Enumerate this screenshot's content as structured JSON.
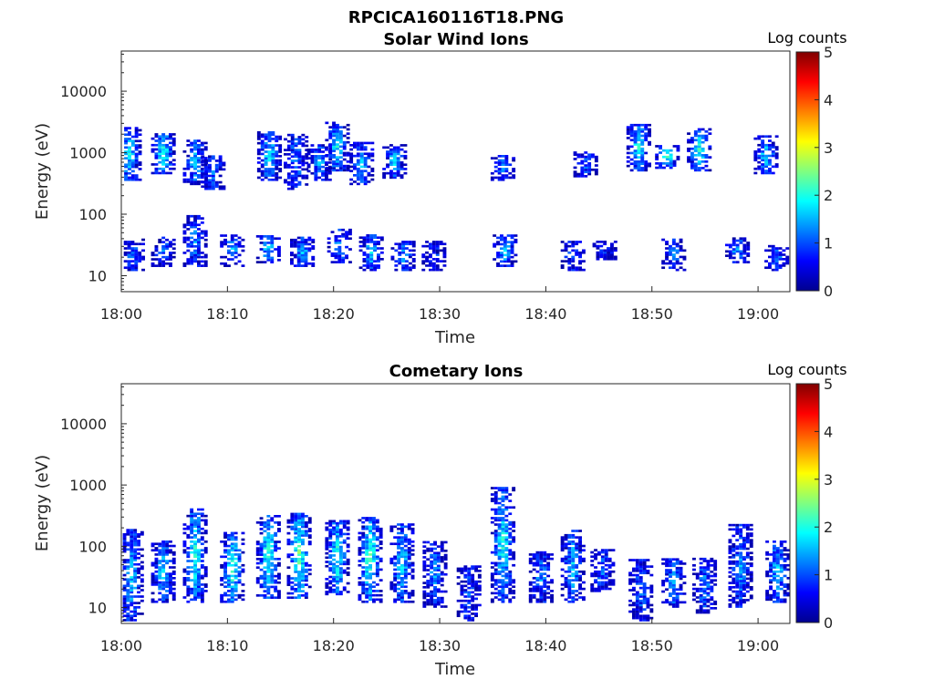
{
  "figure_title": "RPCICA160116T18.PNG",
  "chart_data": [
    {
      "type": "heatmap",
      "title": "Solar Wind Ions",
      "xlabel": "Time",
      "ylabel": "Energy (eV)",
      "x_ticks": [
        "18:00",
        "18:10",
        "18:20",
        "18:30",
        "18:40",
        "18:50",
        "19:00"
      ],
      "xlim": [
        "18:00",
        "19:03"
      ],
      "y_ticks": [
        "10",
        "100",
        "1000",
        "10000"
      ],
      "ylim": [
        5.5,
        45000
      ],
      "y_scale": "log",
      "colorbar": {
        "label": "Log counts",
        "ticks": [
          "0",
          "1",
          "2",
          "3",
          "4",
          "5"
        ],
        "range": [
          0,
          5
        ],
        "colormap": "jet"
      },
      "clusters": [
        {
          "t": 0.6,
          "emin": 350,
          "emax": 2500,
          "level": 1.8
        },
        {
          "t": 3.8,
          "emin": 450,
          "emax": 2000,
          "level": 2.0
        },
        {
          "t": 6.8,
          "emin": 300,
          "emax": 1600,
          "level": 1.6
        },
        {
          "t": 8.5,
          "emin": 250,
          "emax": 900,
          "level": 1.2
        },
        {
          "t": 13.8,
          "emin": 350,
          "emax": 2200,
          "level": 1.8
        },
        {
          "t": 16.3,
          "emin": 250,
          "emax": 1900,
          "level": 1.3
        },
        {
          "t": 18.5,
          "emin": 350,
          "emax": 1300,
          "level": 1.4
        },
        {
          "t": 20.2,
          "emin": 500,
          "emax": 3000,
          "level": 1.8
        },
        {
          "t": 22.5,
          "emin": 300,
          "emax": 1400,
          "level": 1.5
        },
        {
          "t": 25.6,
          "emin": 380,
          "emax": 1300,
          "level": 1.7
        },
        {
          "t": 35.8,
          "emin": 350,
          "emax": 900,
          "level": 1.2
        },
        {
          "t": 43.6,
          "emin": 400,
          "emax": 1000,
          "level": 1.1
        },
        {
          "t": 48.6,
          "emin": 500,
          "emax": 2800,
          "level": 1.9
        },
        {
          "t": 51.3,
          "emin": 550,
          "emax": 1300,
          "level": 2.0
        },
        {
          "t": 54.3,
          "emin": 500,
          "emax": 2400,
          "level": 2.1
        },
        {
          "t": 60.6,
          "emin": 450,
          "emax": 1800,
          "level": 1.7
        },
        {
          "t": 0.9,
          "emin": 12,
          "emax": 40,
          "level": 1.1
        },
        {
          "t": 3.8,
          "emin": 14,
          "emax": 40,
          "level": 1.1
        },
        {
          "t": 6.8,
          "emin": 14,
          "emax": 90,
          "level": 1.3
        },
        {
          "t": 10.3,
          "emin": 14,
          "emax": 45,
          "level": 1.4
        },
        {
          "t": 13.7,
          "emin": 16,
          "emax": 45,
          "level": 1.6
        },
        {
          "t": 16.9,
          "emin": 14,
          "emax": 40,
          "level": 1.5
        },
        {
          "t": 20.4,
          "emin": 16,
          "emax": 55,
          "level": 1.4
        },
        {
          "t": 23.4,
          "emin": 12,
          "emax": 45,
          "level": 1.6
        },
        {
          "t": 26.4,
          "emin": 12,
          "emax": 35,
          "level": 1.3
        },
        {
          "t": 29.3,
          "emin": 12,
          "emax": 35,
          "level": 0.8
        },
        {
          "t": 36.0,
          "emin": 14,
          "emax": 45,
          "level": 1.7
        },
        {
          "t": 42.4,
          "emin": 12,
          "emax": 35,
          "level": 1.0
        },
        {
          "t": 45.4,
          "emin": 18,
          "emax": 35,
          "level": 0.8
        },
        {
          "t": 51.9,
          "emin": 12,
          "emax": 40,
          "level": 1.2
        },
        {
          "t": 57.9,
          "emin": 16,
          "emax": 40,
          "level": 1.4
        },
        {
          "t": 61.6,
          "emin": 12,
          "emax": 30,
          "level": 1.1
        }
      ]
    },
    {
      "type": "heatmap",
      "title": "Cometary Ions",
      "xlabel": "Time",
      "ylabel": "Energy (eV)",
      "x_ticks": [
        "18:00",
        "18:10",
        "18:20",
        "18:30",
        "18:40",
        "18:50",
        "19:00"
      ],
      "xlim": [
        "18:00",
        "19:03"
      ],
      "y_ticks": [
        "10",
        "100",
        "1000",
        "10000"
      ],
      "ylim": [
        5.5,
        45000
      ],
      "y_scale": "log",
      "colorbar": {
        "label": "Log counts",
        "ticks": [
          "0",
          "1",
          "2",
          "3",
          "4",
          "5"
        ],
        "range": [
          0,
          5
        ],
        "colormap": "jet"
      },
      "clusters": [
        {
          "t": 0.8,
          "emin": 6,
          "emax": 180,
          "level": 1.6
        },
        {
          "t": 3.8,
          "emin": 12,
          "emax": 120,
          "level": 1.6
        },
        {
          "t": 6.8,
          "emin": 12,
          "emax": 400,
          "level": 2.0
        },
        {
          "t": 10.3,
          "emin": 12,
          "emax": 160,
          "level": 2.2
        },
        {
          "t": 13.7,
          "emin": 14,
          "emax": 300,
          "level": 2.1
        },
        {
          "t": 16.6,
          "emin": 14,
          "emax": 350,
          "level": 2.3
        },
        {
          "t": 20.2,
          "emin": 16,
          "emax": 260,
          "level": 2.1
        },
        {
          "t": 23.3,
          "emin": 12,
          "emax": 300,
          "level": 2.2
        },
        {
          "t": 26.3,
          "emin": 12,
          "emax": 220,
          "level": 1.7
        },
        {
          "t": 29.4,
          "emin": 10,
          "emax": 120,
          "level": 1.4
        },
        {
          "t": 32.6,
          "emin": 6,
          "emax": 45,
          "level": 1.0
        },
        {
          "t": 35.8,
          "emin": 12,
          "emax": 900,
          "level": 1.9
        },
        {
          "t": 39.4,
          "emin": 12,
          "emax": 80,
          "level": 1.3
        },
        {
          "t": 42.4,
          "emin": 12,
          "emax": 180,
          "level": 1.6
        },
        {
          "t": 45.2,
          "emin": 18,
          "emax": 90,
          "level": 1.2
        },
        {
          "t": 48.8,
          "emin": 6,
          "emax": 60,
          "level": 1.1
        },
        {
          "t": 51.9,
          "emin": 10,
          "emax": 60,
          "level": 1.5
        },
        {
          "t": 54.8,
          "emin": 8,
          "emax": 60,
          "level": 1.3
        },
        {
          "t": 58.2,
          "emin": 10,
          "emax": 220,
          "level": 1.4
        },
        {
          "t": 61.7,
          "emin": 12,
          "emax": 120,
          "level": 1.6
        }
      ]
    }
  ]
}
